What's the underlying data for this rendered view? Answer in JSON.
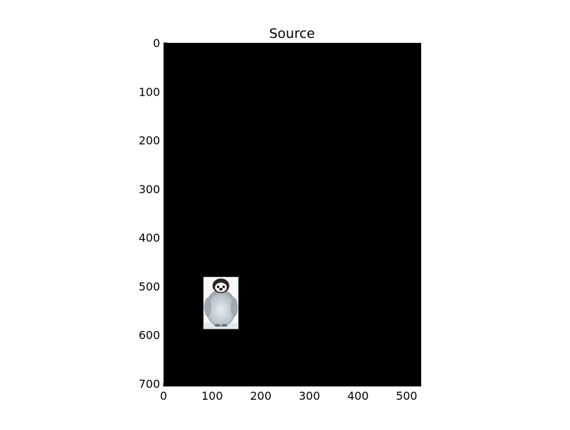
{
  "title": "Source",
  "colors": {
    "background": "#000000"
  },
  "image_extent": {
    "width": 530,
    "height": 706
  },
  "x_axis": {
    "range": [
      0,
      530
    ],
    "ticks": [
      0,
      100,
      200,
      300,
      400,
      500
    ]
  },
  "y_axis": {
    "range": [
      0,
      706
    ],
    "inverted": true,
    "ticks": [
      0,
      100,
      200,
      300,
      400,
      500,
      600,
      700
    ]
  },
  "objects": [
    {
      "name": "penguin-chick",
      "x_range": [
        82,
        154
      ],
      "y_range": [
        481,
        588
      ]
    }
  ]
}
